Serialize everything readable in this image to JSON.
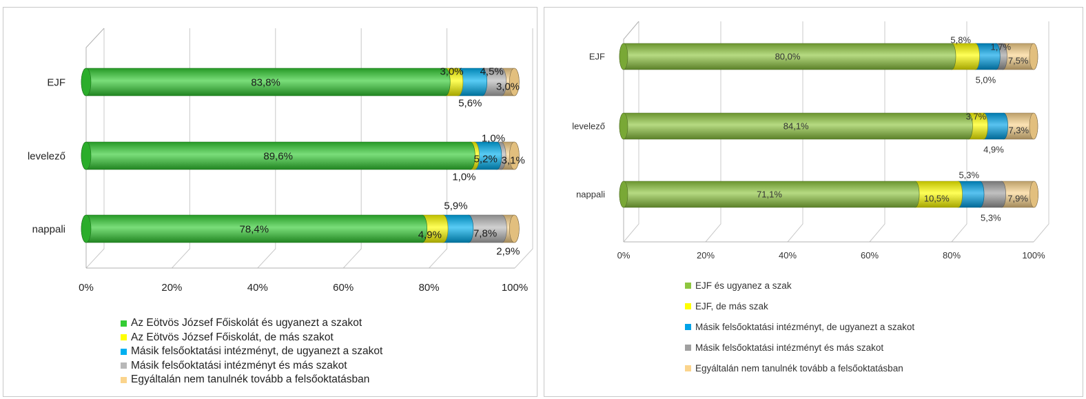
{
  "chart_data": [
    {
      "type": "bar",
      "orientation": "horizontal",
      "stacked": true,
      "percent_stacked": true,
      "style": "3d-cylinder",
      "title": "",
      "categories": [
        "EJF",
        "levelező",
        "nappali"
      ],
      "xlim": [
        0,
        100
      ],
      "x_ticks": [
        "0%",
        "20%",
        "40%",
        "60%",
        "80%",
        "100%"
      ],
      "gridlines": true,
      "legend_position": "bottom",
      "series": [
        {
          "name": "Az Eötvös József Főiskolát és ugyanezt a szakot",
          "color": "#33cc33",
          "values": [
            83.8,
            89.6,
            78.4
          ],
          "labels": [
            "83,8%",
            "89,6%",
            "78,4%"
          ]
        },
        {
          "name": "Az Eötvös József Főiskolát, de más szakot",
          "color": "#ffff00",
          "values": [
            3.0,
            1.0,
            4.9
          ],
          "labels": [
            "3,0%",
            "1,0%",
            "4,9%"
          ]
        },
        {
          "name": "Másik felsőoktatási intézményt, de ugyanezt a szakot",
          "color": "#00b0f0",
          "values": [
            5.6,
            5.2,
            5.9
          ],
          "labels": [
            "5,6%",
            "5,2%",
            "5,9%"
          ]
        },
        {
          "name": "Másik felsőoktatási intézményt és más szakot",
          "color": "#b8b8b8",
          "values": [
            4.5,
            1.0,
            7.8
          ],
          "labels": [
            "4,5%",
            "1,0%",
            "7,8%"
          ]
        },
        {
          "name": "Egyáltalán nem tanulnék tovább a felsőoktatásban",
          "color": "#fbd48c",
          "values": [
            3.0,
            3.1,
            2.9
          ],
          "labels": [
            "3,0%",
            "3,1%",
            "2,9%"
          ]
        }
      ]
    },
    {
      "type": "bar",
      "orientation": "horizontal",
      "stacked": true,
      "percent_stacked": true,
      "style": "3d-cylinder",
      "title": "",
      "categories": [
        "EJF",
        "levelező",
        "nappali"
      ],
      "xlim": [
        0,
        100
      ],
      "x_ticks": [
        "0%",
        "20%",
        "40%",
        "60%",
        "80%",
        "100%"
      ],
      "gridlines": true,
      "legend_position": "bottom",
      "series": [
        {
          "name": "EJF és ugyanez a szak",
          "color": "#8ec63f",
          "values": [
            80.0,
            84.1,
            71.1
          ],
          "labels": [
            "80,0%",
            "84,1%",
            "71,1%"
          ]
        },
        {
          "name": "EJF, de más szak",
          "color": "#ffff00",
          "values": [
            5.8,
            3.7,
            10.5
          ],
          "labels": [
            "5,8%",
            "3,7%",
            "10,5%"
          ]
        },
        {
          "name": "Másik felsőoktatási intézményt, de ugyanezt a szakot",
          "color": "#00a2e8",
          "values": [
            5.0,
            4.9,
            5.3
          ],
          "labels": [
            "5,0%",
            "4,9%",
            "5,3%"
          ]
        },
        {
          "name": "Másik felsőoktatási intézményt és más szakot",
          "color": "#a0a0a0",
          "values": [
            1.7,
            0,
            5.3
          ],
          "labels": [
            "1,7%",
            "",
            "5,3%"
          ]
        },
        {
          "name": "Egyáltalán nem tanulnék tovább a felsőoktatásban",
          "color": "#fbd48c",
          "values": [
            7.5,
            7.3,
            7.9
          ],
          "labels": [
            "7,5%",
            "7,3%",
            "7,9%"
          ]
        }
      ]
    }
  ]
}
